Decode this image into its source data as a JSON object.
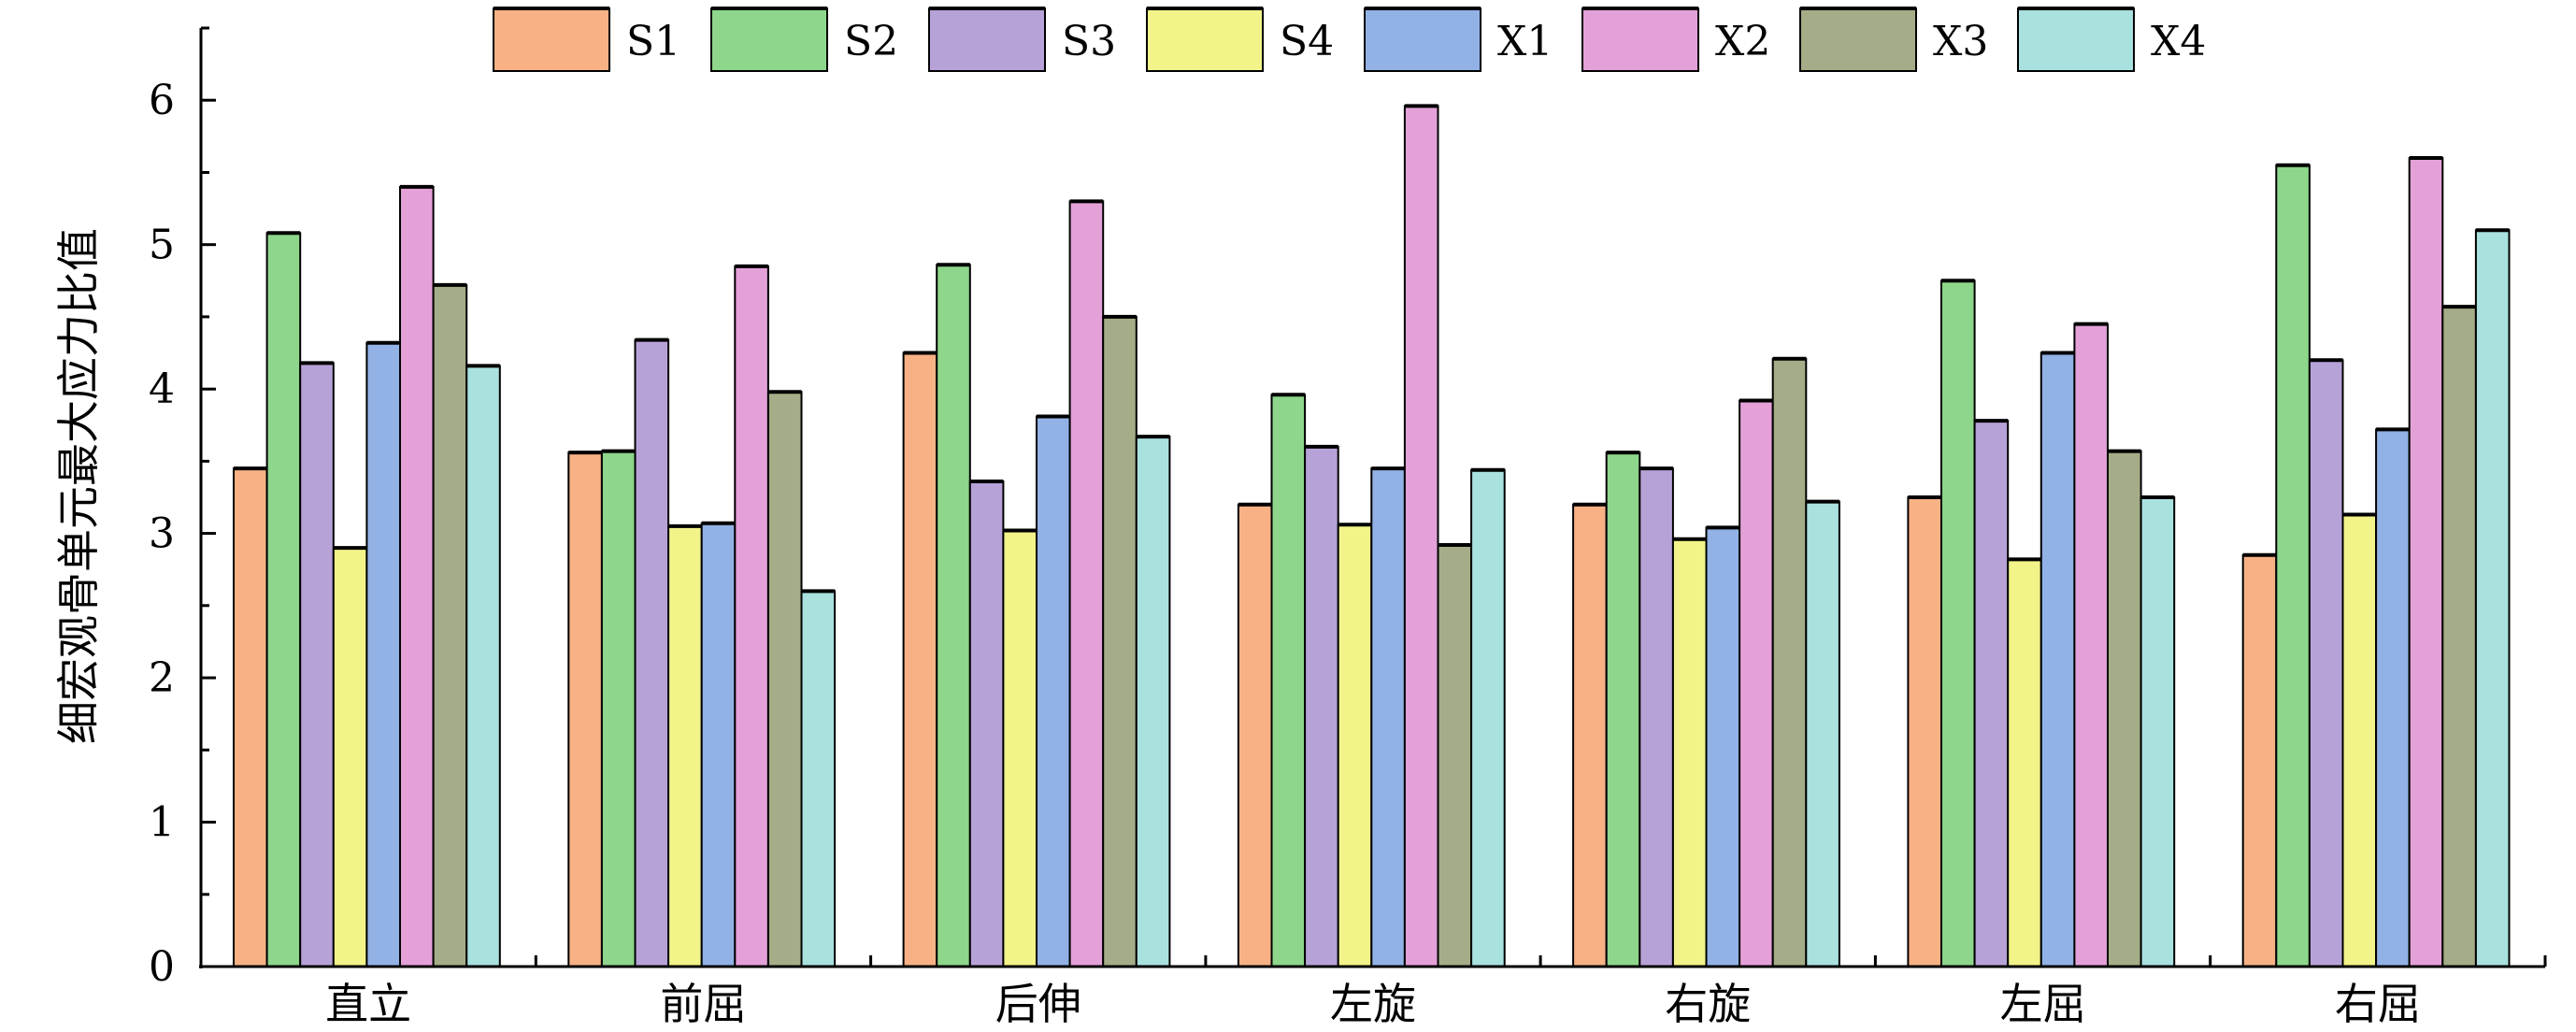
{
  "chart_data": {
    "type": "bar",
    "title": "",
    "xlabel": "",
    "ylabel": "细宏观骨单元最大应力比值",
    "ylim": [
      0,
      6.5
    ],
    "yticks": [
      0,
      1,
      2,
      3,
      4,
      5,
      6
    ],
    "ytick_labels": [
      "0",
      "1",
      "2",
      "3",
      "4",
      "5",
      "6"
    ],
    "legend_position": "top",
    "categories": [
      "直立",
      "前屈",
      "后伸",
      "左旋",
      "右旋",
      "左屈",
      "右屈"
    ],
    "series": [
      {
        "name": "S1",
        "color": "#f7b184",
        "values": [
          3.45,
          3.56,
          4.25,
          3.2,
          3.2,
          3.25,
          2.85
        ]
      },
      {
        "name": "S2",
        "color": "#8dd68b",
        "values": [
          5.08,
          3.57,
          4.86,
          3.96,
          3.56,
          4.75,
          5.55
        ]
      },
      {
        "name": "S3",
        "color": "#b7a2d8",
        "values": [
          4.18,
          4.34,
          3.36,
          3.6,
          3.45,
          3.78,
          4.2
        ]
      },
      {
        "name": "S4",
        "color": "#f2f48a",
        "values": [
          2.9,
          3.05,
          3.02,
          3.06,
          2.96,
          2.82,
          3.13
        ]
      },
      {
        "name": "X1",
        "color": "#92b2e6",
        "values": [
          4.32,
          3.07,
          3.81,
          3.45,
          3.04,
          4.25,
          3.72
        ]
      },
      {
        "name": "X2",
        "color": "#e3a1d8",
        "values": [
          5.4,
          4.85,
          5.3,
          5.96,
          3.92,
          4.45,
          5.6
        ]
      },
      {
        "name": "X3",
        "color": "#a4ad87",
        "values": [
          4.72,
          3.98,
          4.5,
          2.92,
          4.21,
          3.57,
          4.57
        ]
      },
      {
        "name": "X4",
        "color": "#a9e1df",
        "values": [
          4.16,
          2.6,
          3.67,
          3.44,
          3.22,
          3.25,
          5.1
        ]
      }
    ]
  }
}
